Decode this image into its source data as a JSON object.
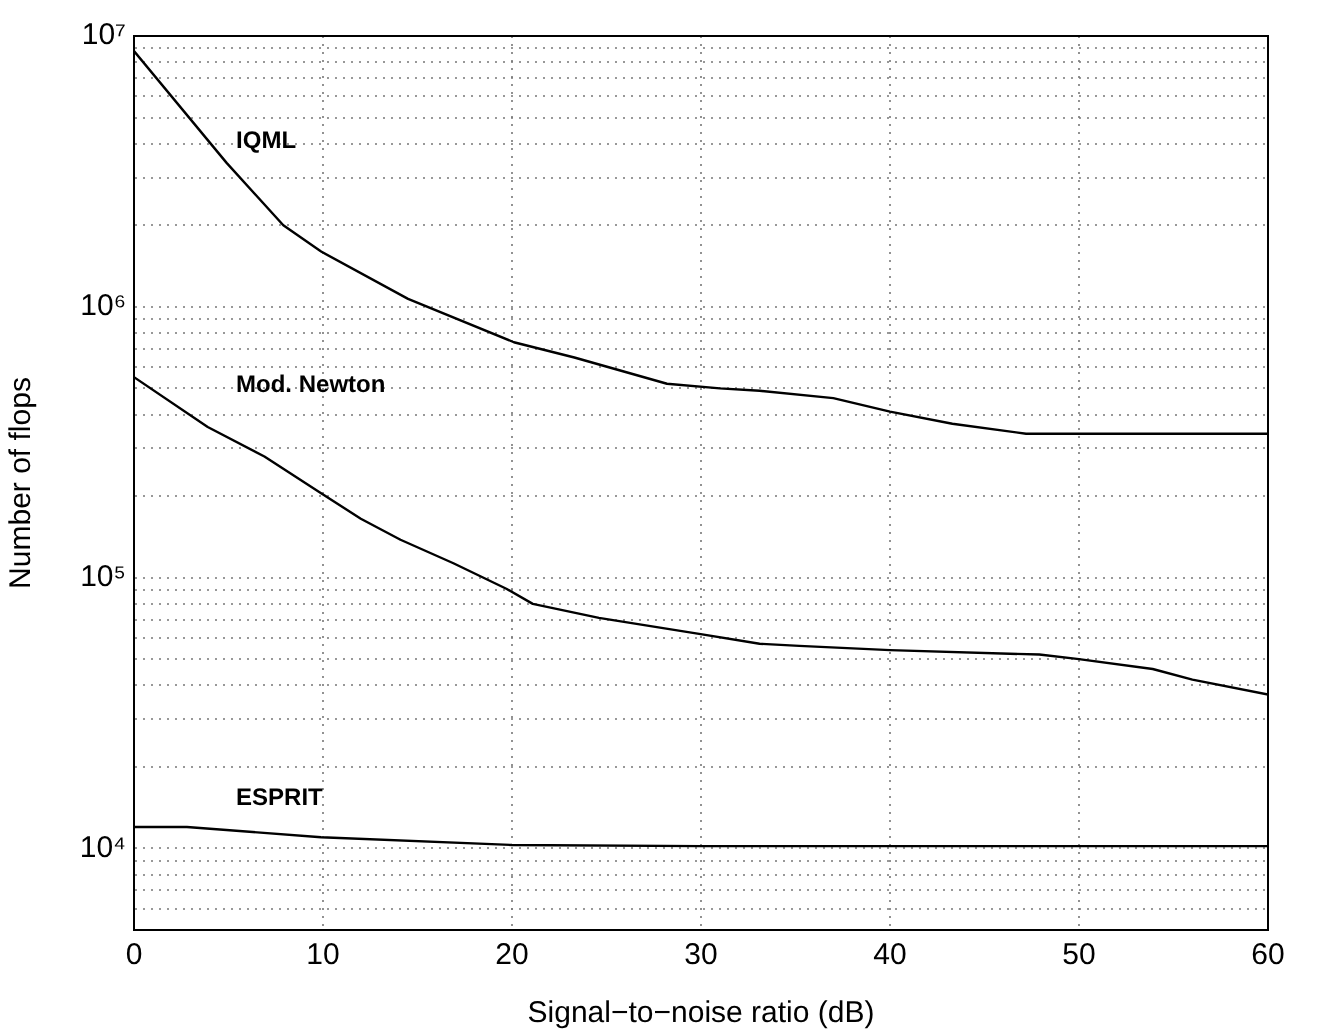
{
  "chart_data": {
    "type": "line",
    "xlabel": "Signal−to−noise ratio (dB)",
    "ylabel": "Number of flops",
    "log": "y",
    "grid": true,
    "marker": "none",
    "line_style": "solid",
    "xlim": [
      0,
      60
    ],
    "xticks": [
      0,
      10,
      20,
      30,
      40,
      50,
      60
    ],
    "ylim": [
      5000,
      10000000
    ],
    "yticks": [
      {
        "value": 6000,
        "label": null
      },
      {
        "value": 7000,
        "label": null
      },
      {
        "value": 8000,
        "label": null
      },
      {
        "value": 9000,
        "label": null
      },
      {
        "value": 10000,
        "label": "10⁴"
      },
      {
        "value": 20000,
        "label": null
      },
      {
        "value": 30000,
        "label": null
      },
      {
        "value": 40000,
        "label": null
      },
      {
        "value": 50000,
        "label": null
      },
      {
        "value": 60000,
        "label": null
      },
      {
        "value": 70000,
        "label": null
      },
      {
        "value": 80000,
        "label": null
      },
      {
        "value": 90000,
        "label": null
      },
      {
        "value": 100000,
        "label": "10⁵"
      },
      {
        "value": 200000,
        "label": null
      },
      {
        "value": 300000,
        "label": null
      },
      {
        "value": 400000,
        "label": null
      },
      {
        "value": 500000,
        "label": null
      },
      {
        "value": 600000,
        "label": null
      },
      {
        "value": 700000,
        "label": null
      },
      {
        "value": 800000,
        "label": null
      },
      {
        "value": 900000,
        "label": null
      },
      {
        "value": 1000000,
        "label": "10⁶"
      },
      {
        "value": 2000000,
        "label": null
      },
      {
        "value": 3000000,
        "label": null
      },
      {
        "value": 4000000,
        "label": null
      },
      {
        "value": 5000000,
        "label": null
      },
      {
        "value": 6000000,
        "label": null
      },
      {
        "value": 7000000,
        "label": null
      },
      {
        "value": 8000000,
        "label": null
      },
      {
        "value": 9000000,
        "label": null
      },
      {
        "value": 10000000,
        "label": "10⁷"
      }
    ],
    "series": [
      {
        "name": "IQML",
        "color": "#000000",
        "x": [
          0,
          4.9,
          7.9,
          9.9,
          14.5,
          20.1,
          23.3,
          28.2,
          31,
          33.1,
          37,
          40,
          43.3,
          47.2,
          50,
          55,
          60
        ],
        "values": [
          8800000,
          3400000,
          2000000,
          1600000,
          1070000,
          740000,
          650000,
          520000,
          500000,
          490000,
          460000,
          410000,
          370000,
          340000,
          340000,
          340000,
          340000
        ]
      },
      {
        "name": "Mod. Newton",
        "color": "#000000",
        "x": [
          0,
          3.9,
          6.9,
          9.9,
          12,
          14.1,
          16.9,
          19.7,
          21.1,
          24.6,
          29.9,
          33.1,
          35.2,
          40,
          47.9,
          50,
          53.9,
          56,
          60
        ],
        "values": [
          550000,
          360000,
          280000,
          205000,
          165000,
          138000,
          113000,
          91000,
          80000,
          71000,
          62000,
          57000,
          56000,
          54000,
          52000,
          50000,
          46000,
          42000,
          37000
        ]
      },
      {
        "name": "ESPRIT",
        "color": "#000000",
        "x": [
          0,
          2.8,
          9.9,
          20,
          30,
          40,
          50,
          60
        ],
        "values": [
          12000,
          12000,
          11000,
          10300,
          10200,
          10200,
          10200,
          10200
        ]
      }
    ]
  }
}
